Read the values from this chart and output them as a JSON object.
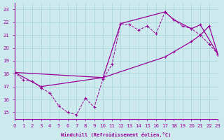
{
  "xlabel": "Windchill (Refroidissement éolien,°C)",
  "xlim": [
    0,
    23
  ],
  "ylim": [
    14.5,
    23.5
  ],
  "yticks": [
    15,
    16,
    17,
    18,
    19,
    20,
    21,
    22,
    23
  ],
  "xticks": [
    0,
    1,
    2,
    3,
    4,
    5,
    6,
    7,
    8,
    9,
    10,
    11,
    12,
    13,
    14,
    15,
    16,
    17,
    18,
    19,
    20,
    21,
    22,
    23
  ],
  "bg_color": "#cceaed",
  "line_color": "#990099",
  "grid_color": "#aad8dc",
  "line_a_x": [
    0,
    1,
    2,
    3,
    4,
    5,
    6,
    7,
    8,
    9,
    10,
    11,
    12,
    13,
    14,
    15,
    16,
    17,
    18,
    19,
    20,
    21,
    22,
    23
  ],
  "line_a_y": [
    18.1,
    17.5,
    17.4,
    16.9,
    16.5,
    15.5,
    15.0,
    14.8,
    16.1,
    15.4,
    17.6,
    18.7,
    21.9,
    21.8,
    21.4,
    21.7,
    21.1,
    22.8,
    22.2,
    21.7,
    21.5,
    21.0,
    20.3,
    19.5
  ],
  "line_b_x": [
    0,
    3,
    10,
    12,
    17,
    18,
    20,
    21,
    23
  ],
  "line_b_y": [
    18.1,
    17.0,
    17.7,
    21.9,
    22.8,
    22.2,
    21.5,
    21.8,
    19.5
  ],
  "line_c_x": [
    0,
    10,
    17,
    18,
    20,
    21,
    22,
    23
  ],
  "line_c_y": [
    18.1,
    17.7,
    19.3,
    19.7,
    20.5,
    21.0,
    21.7,
    19.5
  ]
}
